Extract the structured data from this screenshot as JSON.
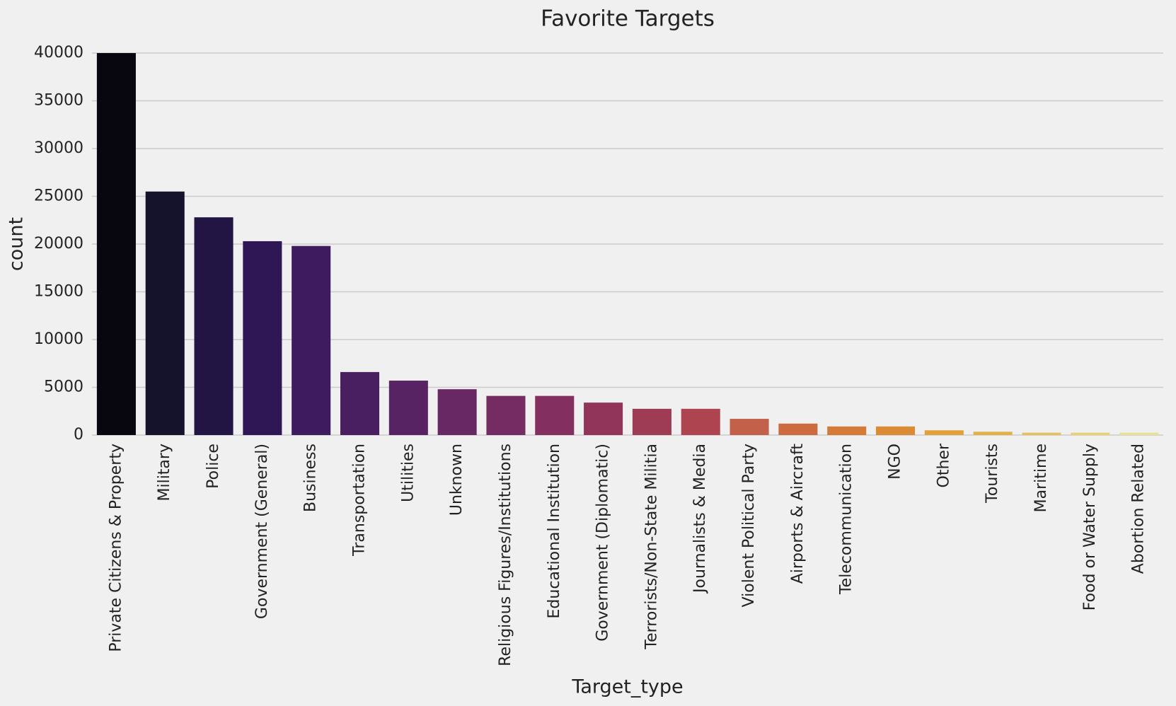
{
  "chart_data": {
    "type": "bar",
    "title": "Favorite Targets",
    "x_label": "Target_type",
    "y_label": "count",
    "categories": [
      "Private Citizens & Property",
      "Military",
      "Police",
      "Government (General)",
      "Business",
      "Transportation",
      "Utilities",
      "Unknown",
      "Religious Figures/Institutions",
      "Educational Institution",
      "Government (Diplomatic)",
      "Terrorists/Non-State Militia",
      "Journalists & Media",
      "Violent Political Party",
      "Airports & Aircraft",
      "Telecommunication",
      "NGO",
      "Other",
      "Tourists",
      "Maritime",
      "Food or Water Supply",
      "Abortion Related"
    ],
    "values": [
      40000,
      25500,
      22800,
      20300,
      19800,
      6600,
      5700,
      4800,
      4100,
      4100,
      3400,
      2750,
      2750,
      1700,
      1200,
      900,
      900,
      500,
      350,
      250,
      250,
      250
    ],
    "colors": [
      "#08070f",
      "#15122b",
      "#221544",
      "#2f1756",
      "#3d1b5e",
      "#4a1f62",
      "#582363",
      "#672863",
      "#742c62",
      "#832f5f",
      "#91355a",
      "#9e3c55",
      "#ad4450",
      "#c2604a",
      "#cd6a3e",
      "#d57a37",
      "#dc8b35",
      "#e1a03a",
      "#e4b04a",
      "#e6c05c",
      "#e7d174",
      "#e8e094"
    ],
    "ylim": [
      0,
      40000
    ],
    "yticks": [
      0,
      5000,
      10000,
      15000,
      20000,
      25000,
      30000,
      35000,
      40000
    ],
    "grid": true
  }
}
